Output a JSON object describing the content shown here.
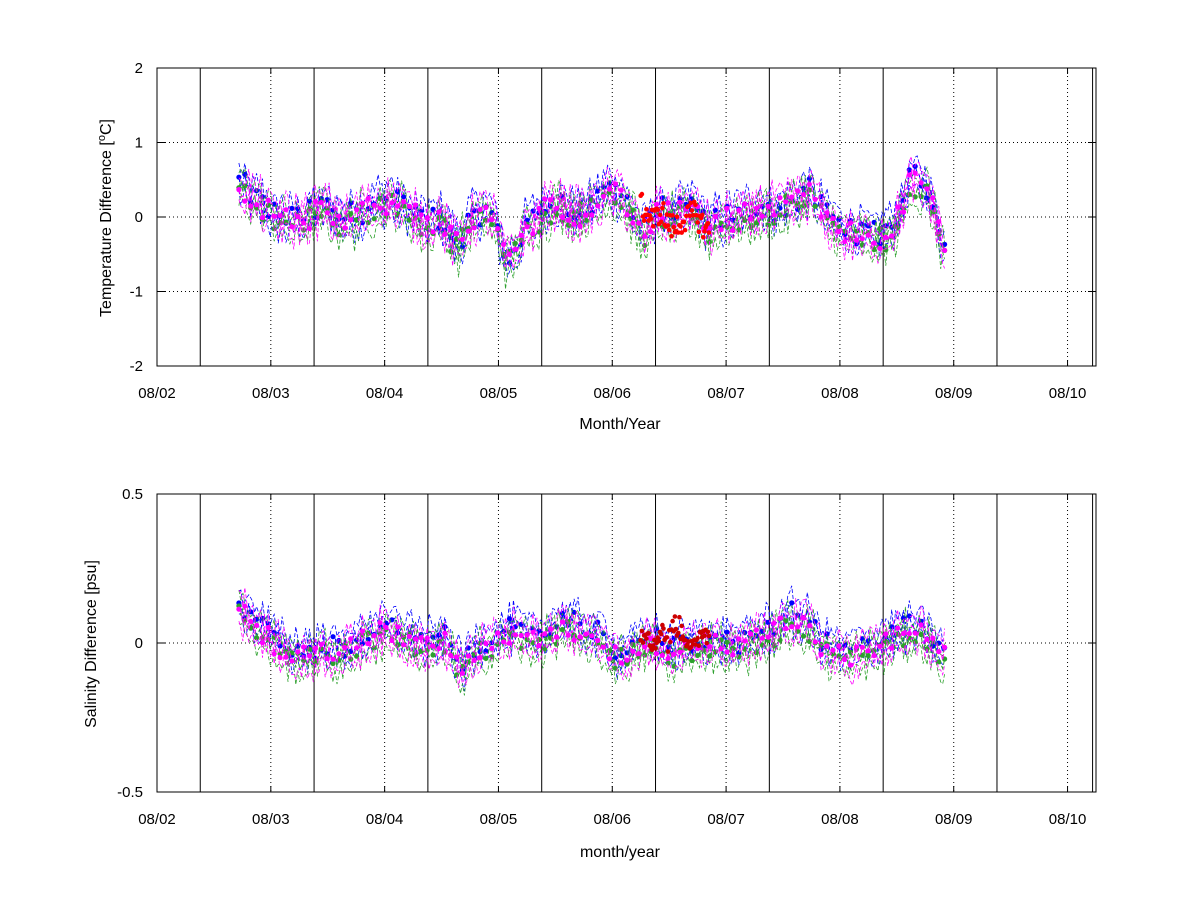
{
  "chart_data": [
    {
      "type": "line",
      "title": "",
      "xlabel": "Month/Year",
      "ylabel_text": "Temperature Difference [",
      "ylabel_sup": "o",
      "ylabel_tail": "C]",
      "ylim": [
        -2,
        2
      ],
      "yticks": [
        -2,
        -1,
        0,
        1,
        2
      ],
      "ytick_labels": [
        "-2",
        "-1",
        "0",
        "1",
        "2"
      ],
      "grid": true,
      "x_ticks": [
        "08/02",
        "08/03",
        "08/04",
        "08/05",
        "08/06",
        "08/07",
        "08/08",
        "08/09",
        "08/10"
      ],
      "x_range": [
        "08/02",
        "08/10 (+0.25 month)"
      ],
      "vertical_lines_at_month_offset": 0.38,
      "data_span": [
        "08/02 +0.72 month",
        "08/08 +0.92 month"
      ],
      "series": [
        {
          "name": "",
          "color": "#0000ff",
          "style": "dashed with markers",
          "level": [
            0.48,
            0.25,
            0.05,
            -0.02,
            0.02,
            0.15,
            0.0,
            0.05,
            0.18,
            0.25,
            0.1,
            -0.05,
            0.0,
            -0.35,
            0.05,
            0.1,
            -0.6,
            -0.15,
            0.1,
            0.25,
            0.05,
            0.15,
            0.4,
            0.25,
            -0.2,
            0.1,
            0.05,
            0.15,
            -0.1,
            0.0,
            0.05,
            0.15,
            0.1,
            0.2,
            0.35,
            0.0,
            -0.15,
            -0.2,
            -0.25,
            -0.1,
            0.55,
            0.4,
            -0.4
          ]
        },
        {
          "name": "",
          "color": "#2ca02c",
          "style": "dashed with markers",
          "level": [
            0.38,
            0.2,
            0.0,
            -0.12,
            -0.05,
            0.1,
            -0.1,
            -0.05,
            0.12,
            0.2,
            0.05,
            -0.15,
            -0.05,
            -0.45,
            -0.05,
            0.0,
            -0.65,
            -0.25,
            0.0,
            0.15,
            0.0,
            0.1,
            0.35,
            0.2,
            -0.3,
            0.0,
            -0.05,
            0.05,
            -0.2,
            -0.1,
            -0.05,
            0.05,
            0.05,
            0.15,
            0.3,
            -0.1,
            -0.25,
            -0.3,
            -0.35,
            -0.2,
            0.45,
            0.3,
            -0.5
          ]
        },
        {
          "name": "",
          "color": "#ff00ff",
          "style": "dashed with markers",
          "level": [
            0.42,
            0.22,
            0.02,
            -0.08,
            -0.02,
            0.12,
            -0.05,
            0.0,
            0.15,
            0.22,
            0.08,
            -0.1,
            -0.02,
            -0.4,
            0.0,
            0.05,
            -0.62,
            -0.2,
            0.05,
            0.2,
            0.02,
            0.12,
            0.38,
            0.22,
            -0.25,
            0.05,
            0.0,
            0.1,
            -0.15,
            -0.05,
            0.0,
            0.1,
            0.08,
            0.18,
            0.32,
            -0.05,
            -0.2,
            -0.25,
            -0.3,
            -0.15,
            0.5,
            0.35,
            -0.45
          ]
        },
        {
          "name": "",
          "color": "#ff0000",
          "style": "markers",
          "level": [
            0.15,
            0.05,
            -0.05,
            0.1,
            -0.1,
            -0.15,
            -0.05,
            0.0,
            0.05,
            -0.1,
            -0.2
          ]
        }
      ]
    },
    {
      "type": "line",
      "title": "",
      "xlabel": "month/year",
      "ylabel_text": "Salinity Difference [psu]",
      "ylim": [
        -0.5,
        0.5
      ],
      "yticks": [
        -0.5,
        0,
        0.5
      ],
      "ytick_labels": [
        "-0.5",
        "0",
        "0.5"
      ],
      "grid": true,
      "x_ticks": [
        "08/02",
        "08/03",
        "08/04",
        "08/05",
        "08/06",
        "08/07",
        "08/08",
        "08/09",
        "08/10"
      ],
      "series": [
        {
          "name": "",
          "color": "#0000ff",
          "style": "dashed with markers",
          "level": [
            0.13,
            0.08,
            0.02,
            -0.02,
            -0.03,
            0.0,
            -0.02,
            0.02,
            0.05,
            0.06,
            0.03,
            0.0,
            0.02,
            -0.08,
            0.0,
            0.03,
            0.05,
            0.02,
            0.05,
            0.08,
            0.05,
            0.03,
            -0.03,
            0.0,
            0.03,
            -0.02,
            0.0,
            0.02,
            0.01,
            0.0,
            0.03,
            0.05,
            0.1,
            0.08,
            0.0,
            -0.03,
            -0.02,
            0.0,
            0.03,
            0.06,
            0.04,
            -0.04
          ]
        },
        {
          "name": "",
          "color": "#2ca02c",
          "style": "dashed with markers",
          "level": [
            0.1,
            0.05,
            -0.01,
            -0.05,
            -0.06,
            -0.03,
            -0.05,
            -0.01,
            0.02,
            0.03,
            0.0,
            -0.03,
            -0.01,
            -0.11,
            -0.03,
            0.0,
            0.02,
            -0.01,
            0.02,
            0.05,
            0.02,
            0.0,
            -0.06,
            -0.03,
            0.0,
            -0.05,
            -0.03,
            -0.01,
            -0.02,
            -0.03,
            0.0,
            0.02,
            0.07,
            0.05,
            -0.03,
            -0.06,
            -0.05,
            -0.03,
            0.0,
            0.03,
            0.01,
            -0.07
          ]
        },
        {
          "name": "",
          "color": "#ff00ff",
          "style": "dashed with markers",
          "level": [
            0.11,
            0.06,
            0.0,
            -0.04,
            -0.05,
            -0.02,
            -0.04,
            0.0,
            0.03,
            0.04,
            0.01,
            -0.02,
            0.0,
            -0.1,
            -0.02,
            0.01,
            0.03,
            0.0,
            0.03,
            0.06,
            0.03,
            0.01,
            -0.05,
            -0.02,
            0.01,
            -0.04,
            -0.02,
            0.0,
            -0.01,
            -0.02,
            0.01,
            0.03,
            0.08,
            0.06,
            -0.02,
            -0.05,
            -0.04,
            -0.02,
            0.01,
            0.04,
            0.02,
            -0.05
          ]
        },
        {
          "name": "",
          "color": "#cc0000",
          "style": "markers",
          "level": [
            0.02,
            0.05,
            -0.02,
            0.06,
            0.0,
            0.07,
            0.04,
            0.01,
            -0.03,
            0.05,
            0.02
          ]
        }
      ]
    }
  ]
}
